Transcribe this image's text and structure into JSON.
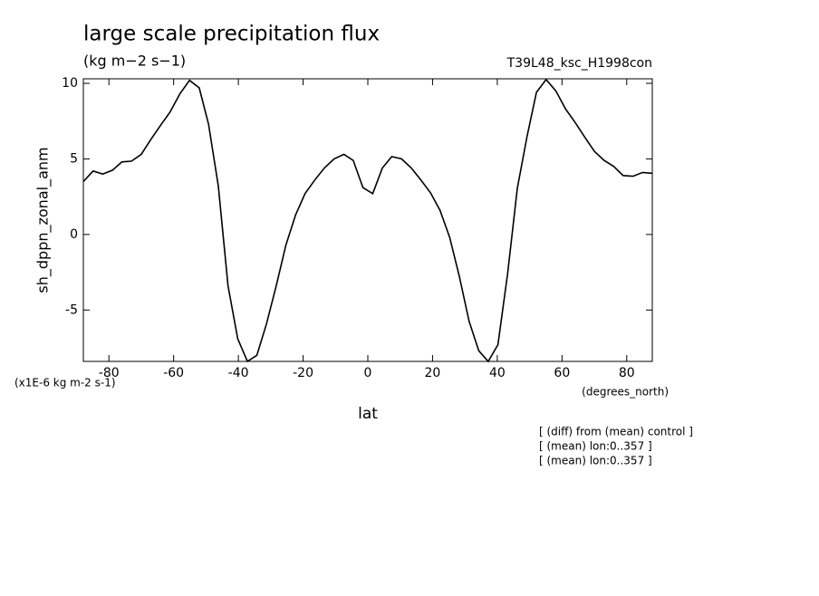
{
  "chart_data": {
    "type": "line",
    "title": "large scale precipitation flux",
    "subtitle": "(kg m−2 s−1)",
    "experiment": "T39L48_ksc_H1998con",
    "ylabel": "sh_dppn_zonal_anm",
    "yunits": "(x1E-6 kg m-2 s-1)",
    "xunits": "(degrees_north)",
    "xlabel": "lat",
    "notes": [
      "[ (diff) from (mean) control ]",
      "[ (mean) lon:0..357 ]",
      "[ (mean) lon:0..357 ]"
    ],
    "xlim": [
      -87.9,
      87.9
    ],
    "ylim": [
      -8.4,
      10.3
    ],
    "xticks": [
      -80,
      -60,
      -40,
      -20,
      0,
      20,
      40,
      60,
      80
    ],
    "yticks": [
      -5,
      0,
      5,
      10
    ],
    "color": "#000000",
    "x": [
      -87.9,
      -84.9,
      -81.9,
      -78.9,
      -76.0,
      -73.0,
      -70.0,
      -67.0,
      -64.1,
      -61.1,
      -58.1,
      -55.1,
      -52.1,
      -49.2,
      -46.2,
      -43.2,
      -40.2,
      -37.2,
      -34.3,
      -31.3,
      -28.3,
      -25.3,
      -22.3,
      -19.4,
      -16.4,
      -13.4,
      -10.4,
      -7.4,
      -4.5,
      -1.5,
      1.5,
      4.5,
      7.4,
      10.4,
      13.4,
      16.4,
      19.4,
      22.3,
      25.3,
      28.3,
      31.3,
      34.3,
      37.2,
      40.2,
      43.2,
      46.2,
      49.2,
      52.1,
      55.1,
      58.1,
      61.1,
      64.1,
      67.0,
      70.0,
      73.0,
      76.0,
      78.9,
      81.9,
      84.9,
      87.9
    ],
    "values": [
      3.5,
      4.2,
      4.0,
      4.25,
      4.8,
      4.85,
      5.3,
      6.3,
      7.2,
      8.1,
      9.3,
      10.2,
      9.7,
      7.3,
      3.2,
      -3.4,
      -6.9,
      -8.4,
      -8.0,
      -5.9,
      -3.4,
      -0.7,
      1.3,
      2.7,
      3.6,
      4.4,
      5.0,
      5.3,
      4.9,
      3.1,
      2.7,
      4.4,
      5.15,
      5.0,
      4.4,
      3.6,
      2.75,
      1.6,
      -0.2,
      -2.8,
      -5.75,
      -7.7,
      -8.4,
      -7.3,
      -2.6,
      3.05,
      6.5,
      9.4,
      10.25,
      9.5,
      8.3,
      7.4,
      6.45,
      5.5,
      4.9,
      4.5,
      3.9,
      3.85,
      4.1,
      4.05
    ]
  }
}
